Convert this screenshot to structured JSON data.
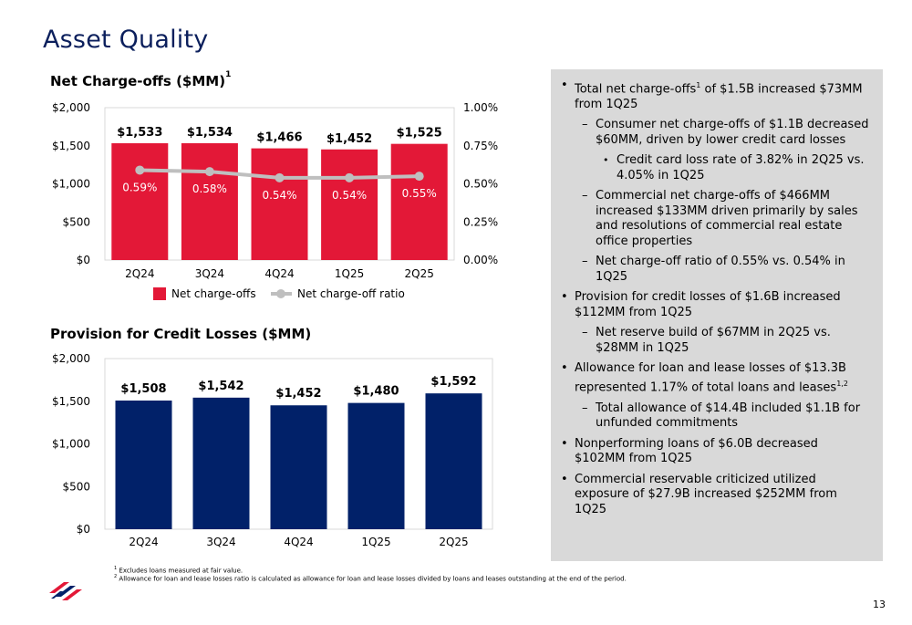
{
  "page": {
    "title": "Asset Quality",
    "page_number": "13"
  },
  "chart_data": [
    {
      "type": "bar",
      "title": "Net Charge-offs ($MM)",
      "title_superscript": "1",
      "categories": [
        "2Q24",
        "3Q24",
        "4Q24",
        "1Q25",
        "2Q25"
      ],
      "series": [
        {
          "name": "Net charge-offs",
          "type": "bar",
          "axis": "left",
          "values": [
            1533,
            1534,
            1466,
            1452,
            1525
          ],
          "labels": [
            "$1,533",
            "$1,534",
            "$1,466",
            "$1,452",
            "$1,525"
          ],
          "color": "#e31837"
        },
        {
          "name": "Net charge-off ratio",
          "type": "line",
          "axis": "right",
          "values": [
            0.59,
            0.58,
            0.54,
            0.54,
            0.55
          ],
          "labels": [
            "0.59%",
            "0.58%",
            "0.54%",
            "0.54%",
            "0.55%"
          ],
          "color": "#bfbfbf"
        }
      ],
      "y_left": {
        "ticks": [
          "$2,000",
          "$1,500",
          "$1,000",
          "$500",
          "$0"
        ],
        "range": [
          0,
          2000
        ]
      },
      "y_right": {
        "ticks": [
          "1.00%",
          "0.75%",
          "0.50%",
          "0.25%",
          "0.00%"
        ],
        "range": [
          0,
          1.0
        ]
      },
      "legend": {
        "position": "bottom"
      }
    },
    {
      "type": "bar",
      "title": "Provision for Credit Losses ($MM)",
      "categories": [
        "2Q24",
        "3Q24",
        "4Q24",
        "1Q25",
        "2Q25"
      ],
      "series": [
        {
          "type": "bar",
          "values": [
            1508,
            1542,
            1452,
            1480,
            1592
          ],
          "labels": [
            "$1,508",
            "$1,542",
            "$1,452",
            "$1,480",
            "$1,592"
          ],
          "color": "#012169"
        }
      ],
      "y_left": {
        "ticks": [
          "$2,000",
          "$1,500",
          "$1,000",
          "$500",
          "$0"
        ],
        "range": [
          0,
          2000
        ]
      }
    }
  ],
  "bullets": [
    {
      "level": 1,
      "marker": "•",
      "text": "Total net charge-offs",
      "sup": "1",
      "text_after": " of $1.5B increased $73MM from 1Q25"
    },
    {
      "level": 2,
      "marker": "–",
      "text": "Consumer net charge-offs of $1.1B decreased $60MM, driven by lower credit card losses"
    },
    {
      "level": 3,
      "marker": "•",
      "text": "Credit card loss rate of 3.82% in 2Q25 vs. 4.05% in 1Q25"
    },
    {
      "level": 2,
      "marker": "–",
      "text": "Commercial net charge-offs of $466MM increased $133MM driven primarily by sales and resolutions of commercial real estate office properties"
    },
    {
      "level": 2,
      "marker": "–",
      "text": "Net charge-off ratio of 0.55% vs. 0.54% in 1Q25"
    },
    {
      "level": 1,
      "marker": "•",
      "text": "Provision for credit losses of $1.6B increased $112MM from 1Q25"
    },
    {
      "level": 2,
      "marker": "–",
      "text": "Net reserve build of $67MM in 2Q25 vs. $28MM in 1Q25"
    },
    {
      "level": 1,
      "marker": "•",
      "text": "Allowance for loan and lease losses of $13.3B represented 1.17% of total loans and leases",
      "sup": "1,2"
    },
    {
      "level": 2,
      "marker": "–",
      "text": "Total allowance of $14.4B included $1.1B for unfunded commitments"
    },
    {
      "level": 1,
      "marker": "•",
      "text": "Nonperforming loans of $6.0B decreased $102MM from 1Q25"
    },
    {
      "level": 1,
      "marker": "•",
      "text": "Commercial reservable criticized utilized exposure of $27.9B increased $252MM from 1Q25"
    }
  ],
  "footnotes": [
    {
      "num": "1",
      "text": " Excludes loans measured at fair value."
    },
    {
      "num": "2",
      "text": " Allowance for loan and lease losses ratio is calculated as allowance for loan and lease losses divided by loans and leases outstanding at the end of the period."
    }
  ],
  "colors": {
    "title": "#0b1f5c",
    "red": "#e31837",
    "navy": "#012169",
    "panel": "#d9d9d9",
    "line": "#bfbfbf"
  },
  "logo": {
    "icon": "bank-of-america-flag-logo"
  }
}
